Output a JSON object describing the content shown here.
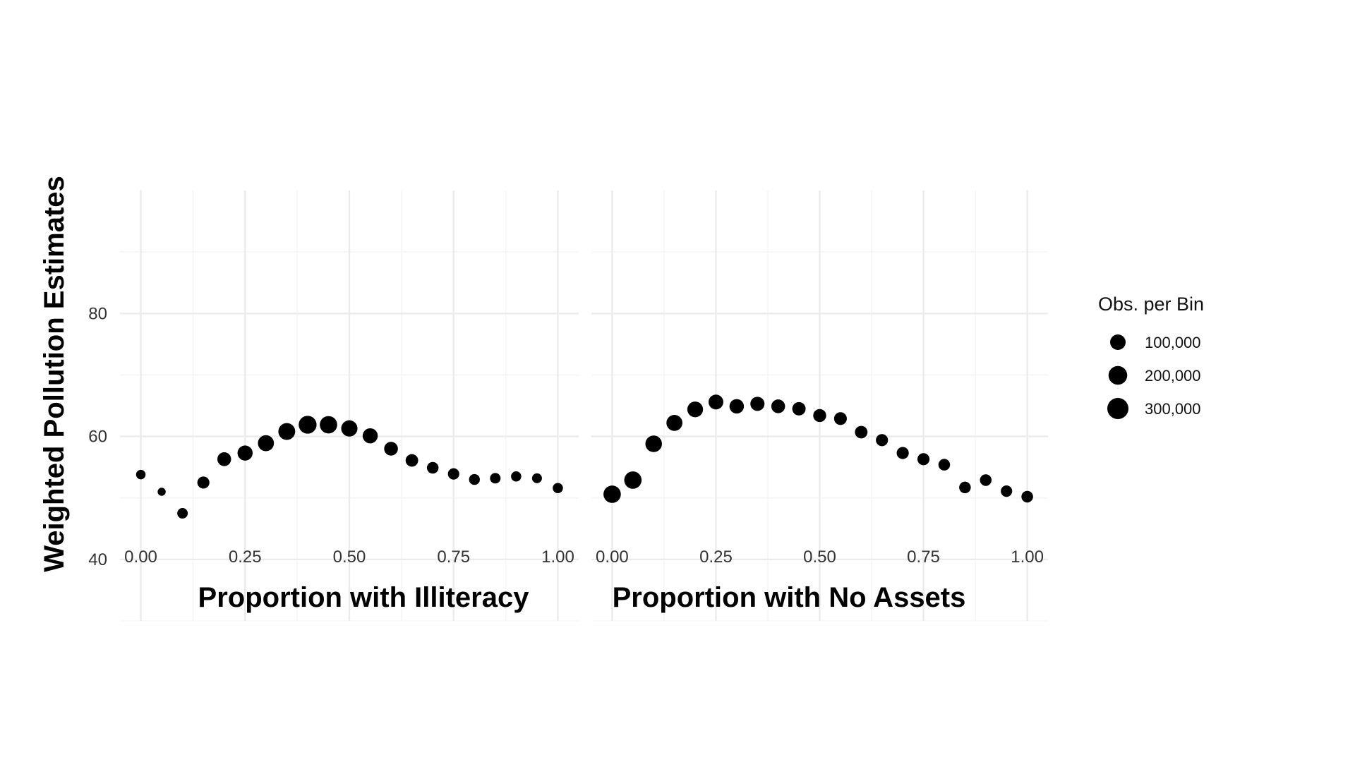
{
  "figure": {
    "ylabel": "Weighted Pollution Estimates",
    "legend": {
      "title": "Obs. per Bin",
      "placement": "right",
      "entries": [
        {
          "label": "100,000",
          "value": 100000
        },
        {
          "label": "200,000",
          "value": 200000
        },
        {
          "label": "300,000",
          "value": 300000
        }
      ]
    },
    "colors": {
      "points": "#000000",
      "grid": "#ebebeb"
    }
  },
  "chart_data": [
    {
      "type": "scatter",
      "xlabel": "Proportion with Illiteracy",
      "ylabel": "Weighted Pollution Estimates",
      "xlim": [
        -0.05,
        1.05
      ],
      "ylim": [
        30,
        100
      ],
      "xticks": [
        0,
        0.25,
        0.5,
        0.75,
        1
      ],
      "xtick_labels": [
        "0.00",
        "0.25",
        "0.50",
        "0.75",
        "1.00"
      ],
      "yticks": [
        40,
        60,
        80
      ],
      "ytick_labels": [
        "40",
        "60",
        "80"
      ],
      "grid": true,
      "points": [
        {
          "x": 0.0,
          "y": 53.8,
          "n": 25000
        },
        {
          "x": 0.05,
          "y": 51.0,
          "n": 10000
        },
        {
          "x": 0.1,
          "y": 47.5,
          "n": 40000
        },
        {
          "x": 0.15,
          "y": 52.5,
          "n": 70000
        },
        {
          "x": 0.2,
          "y": 56.3,
          "n": 110000
        },
        {
          "x": 0.25,
          "y": 57.3,
          "n": 150000
        },
        {
          "x": 0.3,
          "y": 58.9,
          "n": 180000
        },
        {
          "x": 0.35,
          "y": 60.8,
          "n": 210000
        },
        {
          "x": 0.4,
          "y": 61.9,
          "n": 250000
        },
        {
          "x": 0.45,
          "y": 61.9,
          "n": 230000
        },
        {
          "x": 0.5,
          "y": 61.3,
          "n": 190000
        },
        {
          "x": 0.55,
          "y": 60.1,
          "n": 150000
        },
        {
          "x": 0.6,
          "y": 58.0,
          "n": 110000
        },
        {
          "x": 0.65,
          "y": 56.1,
          "n": 80000
        },
        {
          "x": 0.7,
          "y": 54.9,
          "n": 60000
        },
        {
          "x": 0.75,
          "y": 53.9,
          "n": 55000
        },
        {
          "x": 0.8,
          "y": 53.0,
          "n": 45000
        },
        {
          "x": 0.85,
          "y": 53.2,
          "n": 40000
        },
        {
          "x": 0.9,
          "y": 53.5,
          "n": 35000
        },
        {
          "x": 0.95,
          "y": 53.2,
          "n": 30000
        },
        {
          "x": 1.0,
          "y": 51.6,
          "n": 35000
        }
      ]
    },
    {
      "type": "scatter",
      "xlabel": "Proportion with No Assets",
      "ylabel": "Weighted Pollution Estimates",
      "xlim": [
        -0.05,
        1.05
      ],
      "ylim": [
        30,
        100
      ],
      "xticks": [
        0,
        0.25,
        0.5,
        0.75,
        1
      ],
      "xtick_labels": [
        "0.00",
        "0.25",
        "0.50",
        "0.75",
        "1.00"
      ],
      "yticks": [
        40,
        60,
        80
      ],
      "ytick_labels": [
        "40",
        "60",
        "80"
      ],
      "grid": true,
      "points": [
        {
          "x": 0.0,
          "y": 50.6,
          "n": 230000
        },
        {
          "x": 0.05,
          "y": 52.9,
          "n": 230000
        },
        {
          "x": 0.1,
          "y": 58.8,
          "n": 200000
        },
        {
          "x": 0.15,
          "y": 62.2,
          "n": 180000
        },
        {
          "x": 0.2,
          "y": 64.4,
          "n": 170000
        },
        {
          "x": 0.25,
          "y": 65.6,
          "n": 140000
        },
        {
          "x": 0.3,
          "y": 64.9,
          "n": 130000
        },
        {
          "x": 0.35,
          "y": 65.3,
          "n": 120000
        },
        {
          "x": 0.4,
          "y": 64.9,
          "n": 110000
        },
        {
          "x": 0.45,
          "y": 64.5,
          "n": 100000
        },
        {
          "x": 0.5,
          "y": 63.4,
          "n": 90000
        },
        {
          "x": 0.55,
          "y": 62.9,
          "n": 85000
        },
        {
          "x": 0.6,
          "y": 60.7,
          "n": 80000
        },
        {
          "x": 0.65,
          "y": 59.4,
          "n": 70000
        },
        {
          "x": 0.7,
          "y": 57.3,
          "n": 70000
        },
        {
          "x": 0.75,
          "y": 56.3,
          "n": 70000
        },
        {
          "x": 0.8,
          "y": 55.4,
          "n": 60000
        },
        {
          "x": 0.85,
          "y": 51.7,
          "n": 60000
        },
        {
          "x": 0.9,
          "y": 52.9,
          "n": 60000
        },
        {
          "x": 0.95,
          "y": 51.1,
          "n": 55000
        },
        {
          "x": 1.0,
          "y": 50.2,
          "n": 60000
        }
      ]
    }
  ]
}
